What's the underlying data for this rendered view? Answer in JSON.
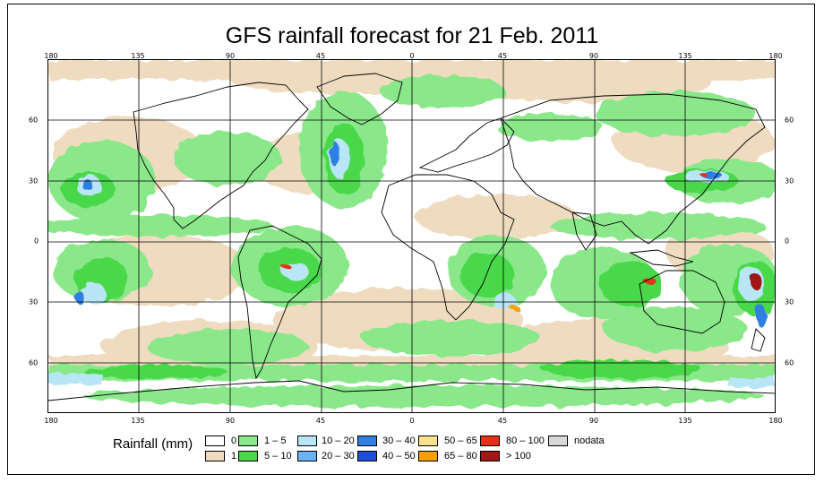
{
  "title": "GFS rainfall forecast for 21 Feb. 2011",
  "colors": {
    "ocean_bg": "#ffffff",
    "dry": "#efdcc0",
    "light_green": "#8ae88a",
    "green": "#4ad84a",
    "light_blue": "#b8e6f6",
    "blue": "#6ab4f4",
    "mid_blue": "#2f7fe0",
    "deep_blue": "#1f4fd8",
    "coast": "#000000",
    "grid": "#000000"
  },
  "map": {
    "projection": "equirectangular",
    "lon_labels": [
      "180",
      "135",
      "90",
      "45",
      "0",
      "45",
      "90",
      "135",
      "180"
    ],
    "lat_labels": [
      "60",
      "30",
      "0",
      "30",
      "60"
    ]
  },
  "legend": {
    "title": "Rainfall (mm)",
    "items": [
      {
        "label": "0",
        "color": "#ffffff"
      },
      {
        "label": "1",
        "color": "#efdcc0"
      },
      {
        "label": "1 – 5",
        "color": "#8ae88a"
      },
      {
        "label": "5 – 10",
        "color": "#4ad84a"
      },
      {
        "label": "10 – 20",
        "color": "#b8e6f6"
      },
      {
        "label": "20 – 30",
        "color": "#6ab4f4"
      },
      {
        "label": "30 – 40",
        "color": "#2f7fe0"
      },
      {
        "label": "40 – 50",
        "color": "#1f4fd8"
      },
      {
        "label": "50 – 65",
        "color": "#fde08a"
      },
      {
        "label": "65 – 80",
        "color": "#f5a000"
      },
      {
        "label": "80 – 100",
        "color": "#e83018"
      },
      {
        "label": "> 100",
        "color": "#a01818"
      },
      {
        "label": "nodata",
        "color": "#d8d8d8"
      }
    ]
  }
}
